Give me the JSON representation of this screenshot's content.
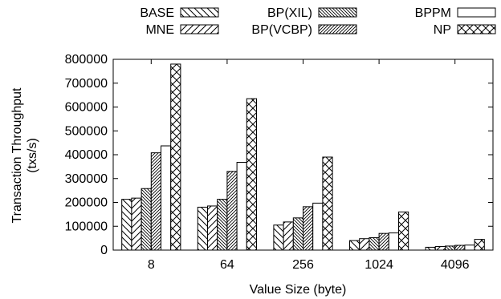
{
  "chart_data": {
    "type": "bar",
    "title": "",
    "xlabel": "Value Size (byte)",
    "ylabel": [
      "Transaction Throughput",
      "(txs/s)"
    ],
    "categories": [
      "8",
      "64",
      "256",
      "1024",
      "4096"
    ],
    "ylim": [
      0,
      800000
    ],
    "yticks": [
      0,
      100000,
      200000,
      300000,
      400000,
      500000,
      600000,
      700000,
      800000
    ],
    "grid": false,
    "legend_position": "top",
    "series": [
      {
        "name": "BASE",
        "pattern": "diag-back",
        "values": [
          213000,
          180000,
          105000,
          40000,
          12000
        ]
      },
      {
        "name": "MNE",
        "pattern": "diag-fwd",
        "values": [
          218000,
          185000,
          118000,
          48000,
          15000
        ]
      },
      {
        "name": "BP(XIL)",
        "pattern": "diag-back-dense",
        "values": [
          258000,
          213000,
          135000,
          52000,
          17000
        ]
      },
      {
        "name": "BP(VCBP)",
        "pattern": "diag-fwd-dense",
        "values": [
          408000,
          330000,
          182000,
          70000,
          20000
        ]
      },
      {
        "name": "BPPM",
        "pattern": "none",
        "values": [
          437000,
          368000,
          197000,
          72000,
          21000
        ]
      },
      {
        "name": "NP",
        "pattern": "crosshatch",
        "values": [
          780000,
          635000,
          390000,
          160000,
          45000
        ]
      }
    ]
  }
}
